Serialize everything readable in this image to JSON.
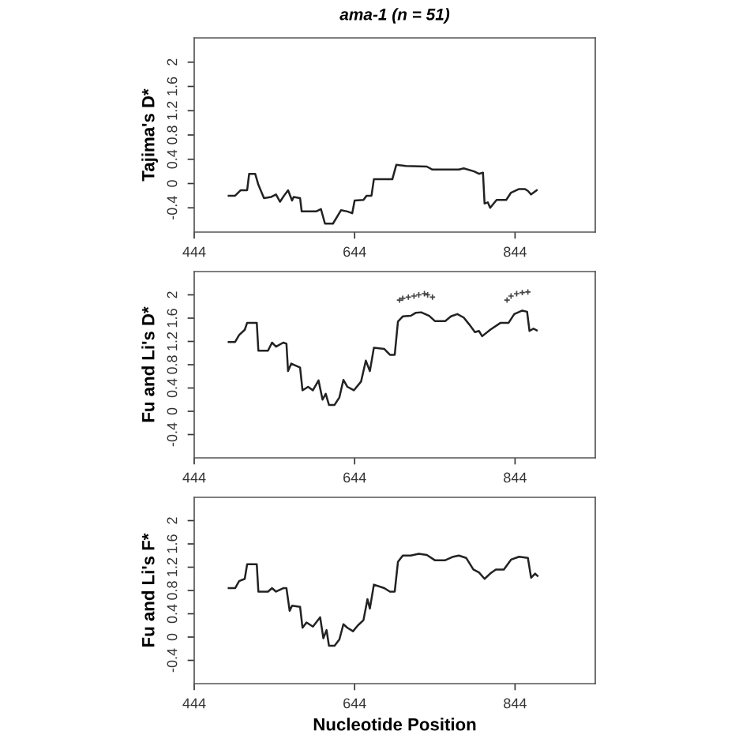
{
  "chart_data": [
    {
      "type": "line",
      "title": "ama-1 (n = 51)",
      "ylabel": "Tajima's D*",
      "xlim": [
        444,
        944
      ],
      "xticks": [
        444,
        644,
        844
      ],
      "ylim": [
        -0.8,
        2.4
      ],
      "yticks": [
        -0.4,
        0,
        0.4,
        0.8,
        1.2,
        1.6,
        2
      ],
      "grid": false,
      "legend": false,
      "series": [
        {
          "color": "#222222",
          "x": [
            487,
            495,
            502,
            510,
            512.5,
            520,
            524,
            531,
            540,
            546,
            551,
            556,
            561,
            566,
            568,
            576,
            578,
            596,
            602,
            607,
            617,
            627,
            635,
            641,
            644,
            655,
            659,
            665,
            668,
            691,
            696,
            708,
            734,
            741,
            774,
            780,
            793,
            799,
            804,
            806,
            810,
            813,
            821,
            833,
            839,
            849,
            856,
            860,
            864,
            871
          ],
          "values": [
            -0.2,
            -0.2,
            -0.11,
            -0.11,
            0.16,
            0.16,
            -0.02,
            -0.24,
            -0.22,
            -0.18,
            -0.3,
            -0.2,
            -0.11,
            -0.28,
            -0.22,
            -0.24,
            -0.46,
            -0.46,
            -0.42,
            -0.66,
            -0.66,
            -0.44,
            -0.46,
            -0.49,
            -0.28,
            -0.27,
            -0.2,
            -0.2,
            0.07,
            0.07,
            0.31,
            0.29,
            0.28,
            0.23,
            0.23,
            0.25,
            0.2,
            0.16,
            0.18,
            -0.33,
            -0.31,
            -0.4,
            -0.27,
            -0.27,
            -0.15,
            -0.09,
            -0.09,
            -0.12,
            -0.18,
            -0.11
          ]
        }
      ]
    },
    {
      "type": "line",
      "ylabel": "Fu and Li's D*",
      "xlim": [
        444,
        944
      ],
      "xticks": [
        444,
        644,
        844
      ],
      "ylim": [
        -0.8,
        2.4
      ],
      "yticks": [
        -0.4,
        0,
        0.4,
        0.8,
        1.2,
        1.6,
        2
      ],
      "grid": false,
      "legend": false,
      "series": [
        {
          "color": "#222222",
          "x": [
            487,
            495,
            500,
            507,
            510,
            522,
            524,
            536,
            541,
            546,
            555,
            559,
            561,
            565,
            576,
            579,
            586,
            592,
            599,
            604,
            608,
            612,
            619,
            625,
            630,
            635,
            643,
            652,
            658,
            663,
            668,
            681,
            688,
            694,
            698,
            704,
            714,
            720,
            727,
            737,
            744,
            757,
            764,
            772,
            780,
            787,
            794,
            799,
            803,
            813,
            826,
            836,
            843,
            853,
            859,
            862,
            867,
            871
          ],
          "values": [
            1.19,
            1.19,
            1.31,
            1.4,
            1.52,
            1.52,
            1.04,
            1.04,
            1.18,
            1.11,
            1.18,
            1.16,
            0.69,
            0.82,
            0.75,
            0.36,
            0.42,
            0.36,
            0.53,
            0.2,
            0.3,
            0.11,
            0.11,
            0.24,
            0.54,
            0.42,
            0.36,
            0.51,
            0.87,
            0.69,
            1.09,
            1.07,
            0.97,
            0.97,
            1.54,
            1.63,
            1.64,
            1.69,
            1.7,
            1.64,
            1.55,
            1.55,
            1.63,
            1.67,
            1.61,
            1.49,
            1.36,
            1.38,
            1.29,
            1.4,
            1.52,
            1.52,
            1.67,
            1.73,
            1.71,
            1.38,
            1.42,
            1.39
          ]
        },
        {
          "type": "scatter",
          "marker": "cross",
          "color": "#444444",
          "x": [
            700,
            704,
            711,
            718,
            724,
            731,
            735,
            741,
            834,
            839,
            846,
            853,
            860
          ],
          "values": [
            1.91,
            1.94,
            1.96,
            1.98,
            2.0,
            2.02,
            2.0,
            1.96,
            1.91,
            1.98,
            2.02,
            2.04,
            2.05
          ]
        }
      ]
    },
    {
      "type": "line",
      "ylabel": "Fu and Li's F*",
      "xlabel": "Nucleotide Position",
      "xlim": [
        444,
        944
      ],
      "xticks": [
        444,
        644,
        844
      ],
      "ylim": [
        -0.8,
        2.4
      ],
      "yticks": [
        -0.4,
        0,
        0.4,
        0.8,
        1.2,
        1.6,
        2
      ],
      "grid": false,
      "legend": false,
      "series": [
        {
          "color": "#222222",
          "x": [
            487,
            495,
            500,
            507,
            510,
            522,
            524,
            536,
            541,
            546,
            555,
            559,
            563,
            566,
            576,
            579,
            584,
            592,
            601,
            605,
            609,
            612,
            619,
            625,
            630,
            635,
            642,
            648,
            655,
            660,
            663,
            668,
            681,
            688,
            694,
            698,
            704,
            714,
            724,
            734,
            744,
            757,
            767,
            774,
            783,
            792,
            799,
            806,
            813,
            820,
            830,
            839,
            849,
            860,
            864,
            869,
            872
          ],
          "values": [
            0.84,
            0.84,
            0.96,
            1.0,
            1.25,
            1.25,
            0.78,
            0.78,
            0.84,
            0.78,
            0.84,
            0.84,
            0.45,
            0.54,
            0.52,
            0.16,
            0.25,
            0.18,
            0.34,
            -0.02,
            0.12,
            -0.15,
            -0.15,
            -0.04,
            0.22,
            0.16,
            0.1,
            0.2,
            0.29,
            0.65,
            0.49,
            0.9,
            0.84,
            0.78,
            0.78,
            1.29,
            1.4,
            1.4,
            1.43,
            1.41,
            1.32,
            1.32,
            1.38,
            1.4,
            1.36,
            1.16,
            1.11,
            1.0,
            1.09,
            1.16,
            1.16,
            1.33,
            1.38,
            1.36,
            1.02,
            1.09,
            1.05
          ]
        }
      ]
    }
  ]
}
